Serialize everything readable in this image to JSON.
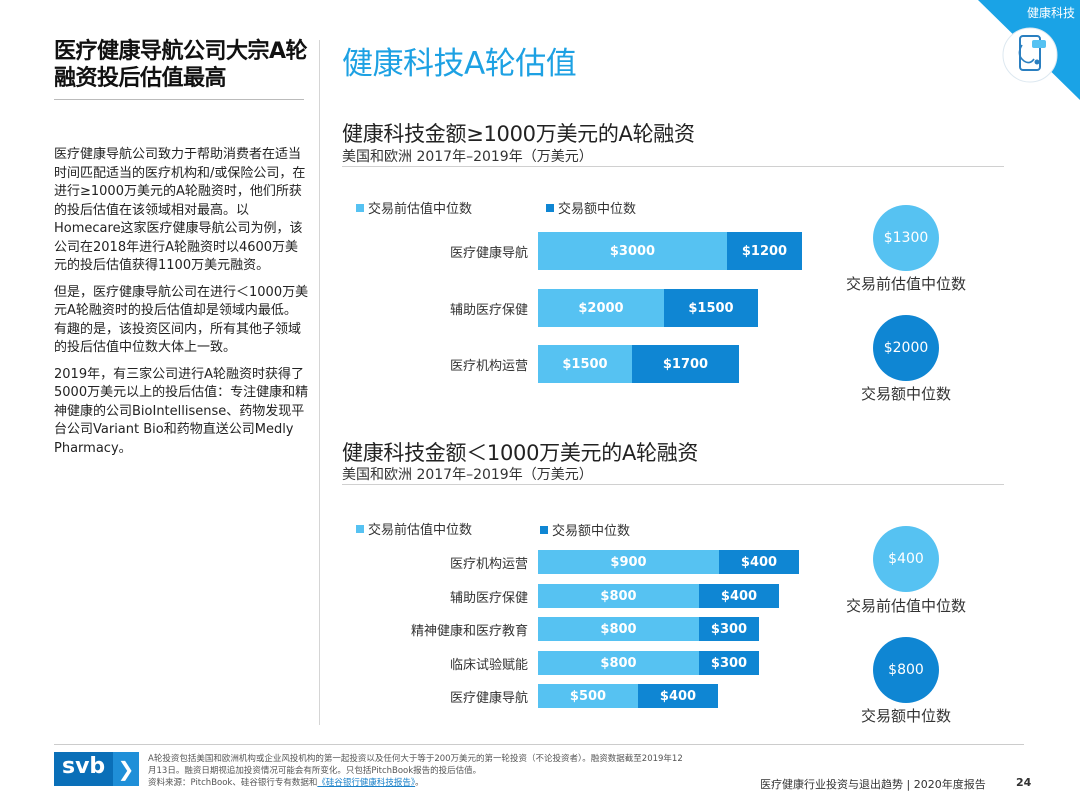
{
  "header": {
    "left_title": "医疗健康导航公司大宗A轮融资投后估值最高",
    "page_title": "健康科技A轮估值",
    "corner_label": "健康科技"
  },
  "left_body": {
    "p1": "医疗健康导航公司致力于帮助消费者在适当时间匹配适当的医疗机构和/或保险公司，在进行≥1000万美元的A轮融资时，他们所获的投后估值在该领域相对最高。以Homecare这家医疗健康导航公司为例，该公司在2018年进行A轮融资时以4600万美元的投后估值获得1100万美元融资。",
    "p2": "但是，医疗健康导航公司在进行＜1000万美元A轮融资时的投后估值却是领域内最低。有趣的是，该投资区间内，所有其他子领域的投后估值中位数大体上一致。",
    "p3": "2019年，有三家公司进行A轮融资时获得了5000万美元以上的投后估值：专注健康和精神健康的公司BioIntellisense、药物发现平台公司Variant Bio和药物直送公司Medly Pharmacy。"
  },
  "colors": {
    "pre": "#56c2f2",
    "deal": "#0f86d3",
    "accent": "#1da1e3"
  },
  "chart_data": [
    {
      "type": "bar",
      "orientation": "horizontal",
      "stacked": true,
      "title": "健康科技金额≥1000万美元的A轮融资",
      "subtitle": "美国和欧洲 2017年–2019年（万美元）",
      "legend": [
        "交易前估值中位数",
        "交易额中位数"
      ],
      "categories": [
        "医疗健康导航",
        "辅助医疗保健",
        "医疗机构运营"
      ],
      "series": [
        {
          "name": "交易前估值中位数",
          "values": [
            3000,
            2000,
            1500
          ],
          "labels": [
            "$3000",
            "$2000",
            "$1500"
          ]
        },
        {
          "name": "交易额中位数",
          "values": [
            1200,
            1500,
            1700
          ],
          "labels": [
            "$1200",
            "$1500",
            "$1700"
          ]
        }
      ],
      "bubbles": [
        {
          "value": "$1300",
          "caption": "交易前估值中位数"
        },
        {
          "value": "$2000",
          "caption": "交易额中位数"
        }
      ]
    },
    {
      "type": "bar",
      "orientation": "horizontal",
      "stacked": true,
      "title": "健康科技金额＜1000万美元的A轮融资",
      "subtitle": "美国和欧洲 2017年–2019年（万美元）",
      "legend": [
        "交易前估值中位数",
        "交易额中位数"
      ],
      "categories": [
        "医疗机构运营",
        "辅助医疗保健",
        "精神健康和医疗教育",
        "临床试验赋能",
        "医疗健康导航"
      ],
      "series": [
        {
          "name": "交易前估值中位数",
          "values": [
            900,
            800,
            800,
            800,
            500
          ],
          "labels": [
            "$900",
            "$800",
            "$800",
            "$800",
            "$500"
          ]
        },
        {
          "name": "交易额中位数",
          "values": [
            400,
            400,
            300,
            300,
            400
          ],
          "labels": [
            "$400",
            "$400",
            "$300",
            "$300",
            "$400"
          ]
        }
      ],
      "bubbles": [
        {
          "value": "$400",
          "caption": "交易前估值中位数"
        },
        {
          "value": "$800",
          "caption": "交易额中位数"
        }
      ]
    }
  ],
  "footer": {
    "logo_text": "svb",
    "logo_arrow": "❯",
    "footnote_1": "A轮投资包括美国和欧洲机构或企业风投机构的第一起投资以及任何大于等于200万美元的第一轮投资（不论投资者）。融资数据截至2019年12月13日。融资日期视追加投资情况可能会有所变化。只包括PitchBook报告的投后估值。",
    "footnote_2": "资料来源：PitchBook、硅谷银行专有数据和",
    "footnote_link": "《硅谷银行健康科技报告》",
    "footnote_end": "。",
    "report": "医疗健康行业投资与退出趋势 | 2020年度报告",
    "page_number": "24"
  }
}
